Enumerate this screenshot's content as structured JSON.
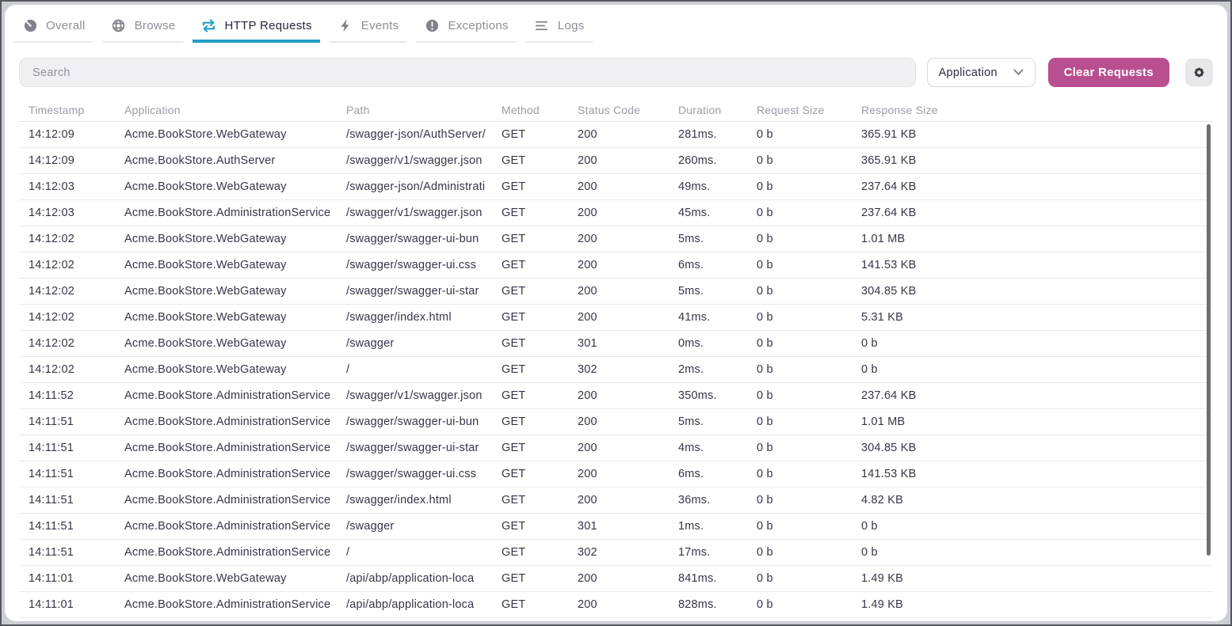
{
  "tabs": [
    {
      "label": "Overall",
      "icon": "gauge-icon",
      "active": false
    },
    {
      "label": "Browse",
      "icon": "globe-icon",
      "active": false
    },
    {
      "label": "HTTP Requests",
      "icon": "exchange-arrows-icon",
      "active": true
    },
    {
      "label": "Events",
      "icon": "bolt-icon",
      "active": false
    },
    {
      "label": "Exceptions",
      "icon": "exclamation-circle-icon",
      "active": false
    },
    {
      "label": "Logs",
      "icon": "list-icon",
      "active": false
    }
  ],
  "toolbar": {
    "search_placeholder": "Search",
    "filter_dropdown_value": "Application",
    "clear_button_label": "Clear Requests",
    "settings_icon": "gear-icon"
  },
  "colors": {
    "accent_blue": "#1e9fc7",
    "button_magenta": "#b94f90",
    "inactive_tab": "#8c8c97",
    "cell_text": "#353548",
    "header_text": "#9b9ba6",
    "row_border": "#e9e9ee",
    "search_bg": "#f0f0f4",
    "scroll_thumb": "#6e6e74"
  },
  "table": {
    "columns": [
      "Timestamp",
      "Application",
      "Path",
      "Method",
      "Status Code",
      "Duration",
      "Request Size",
      "Response Size"
    ],
    "rows": [
      [
        "14:12:09",
        "Acme.BookStore.WebGateway",
        "/swagger-json/AuthServer/",
        "GET",
        "200",
        "281ms.",
        "0 b",
        "365.91 KB"
      ],
      [
        "14:12:09",
        "Acme.BookStore.AuthServer",
        "/swagger/v1/swagger.json",
        "GET",
        "200",
        "260ms.",
        "0 b",
        "365.91 KB"
      ],
      [
        "14:12:03",
        "Acme.BookStore.WebGateway",
        "/swagger-json/Administrati",
        "GET",
        "200",
        "49ms.",
        "0 b",
        "237.64 KB"
      ],
      [
        "14:12:03",
        "Acme.BookStore.AdministrationService",
        "/swagger/v1/swagger.json",
        "GET",
        "200",
        "45ms.",
        "0 b",
        "237.64 KB"
      ],
      [
        "14:12:02",
        "Acme.BookStore.WebGateway",
        "/swagger/swagger-ui-bun",
        "GET",
        "200",
        "5ms.",
        "0 b",
        "1.01 MB"
      ],
      [
        "14:12:02",
        "Acme.BookStore.WebGateway",
        "/swagger/swagger-ui.css",
        "GET",
        "200",
        "6ms.",
        "0 b",
        "141.53 KB"
      ],
      [
        "14:12:02",
        "Acme.BookStore.WebGateway",
        "/swagger/swagger-ui-star",
        "GET",
        "200",
        "5ms.",
        "0 b",
        "304.85 KB"
      ],
      [
        "14:12:02",
        "Acme.BookStore.WebGateway",
        "/swagger/index.html",
        "GET",
        "200",
        "41ms.",
        "0 b",
        "5.31 KB"
      ],
      [
        "14:12:02",
        "Acme.BookStore.WebGateway",
        "/swagger",
        "GET",
        "301",
        "0ms.",
        "0 b",
        "0 b"
      ],
      [
        "14:12:02",
        "Acme.BookStore.WebGateway",
        "/",
        "GET",
        "302",
        "2ms.",
        "0 b",
        "0 b"
      ],
      [
        "14:11:52",
        "Acme.BookStore.AdministrationService",
        "/swagger/v1/swagger.json",
        "GET",
        "200",
        "350ms.",
        "0 b",
        "237.64 KB"
      ],
      [
        "14:11:51",
        "Acme.BookStore.AdministrationService",
        "/swagger/swagger-ui-bun",
        "GET",
        "200",
        "5ms.",
        "0 b",
        "1.01 MB"
      ],
      [
        "14:11:51",
        "Acme.BookStore.AdministrationService",
        "/swagger/swagger-ui-star",
        "GET",
        "200",
        "4ms.",
        "0 b",
        "304.85 KB"
      ],
      [
        "14:11:51",
        "Acme.BookStore.AdministrationService",
        "/swagger/swagger-ui.css",
        "GET",
        "200",
        "6ms.",
        "0 b",
        "141.53 KB"
      ],
      [
        "14:11:51",
        "Acme.BookStore.AdministrationService",
        "/swagger/index.html",
        "GET",
        "200",
        "36ms.",
        "0 b",
        "4.82 KB"
      ],
      [
        "14:11:51",
        "Acme.BookStore.AdministrationService",
        "/swagger",
        "GET",
        "301",
        "1ms.",
        "0 b",
        "0 b"
      ],
      [
        "14:11:51",
        "Acme.BookStore.AdministrationService",
        "/",
        "GET",
        "302",
        "17ms.",
        "0 b",
        "0 b"
      ],
      [
        "14:11:01",
        "Acme.BookStore.WebGateway",
        "/api/abp/application-loca",
        "GET",
        "200",
        "841ms.",
        "0 b",
        "1.49 KB"
      ],
      [
        "14:11:01",
        "Acme.BookStore.AdministrationService",
        "/api/abp/application-loca",
        "GET",
        "200",
        "828ms.",
        "0 b",
        "1.49 KB"
      ]
    ]
  }
}
